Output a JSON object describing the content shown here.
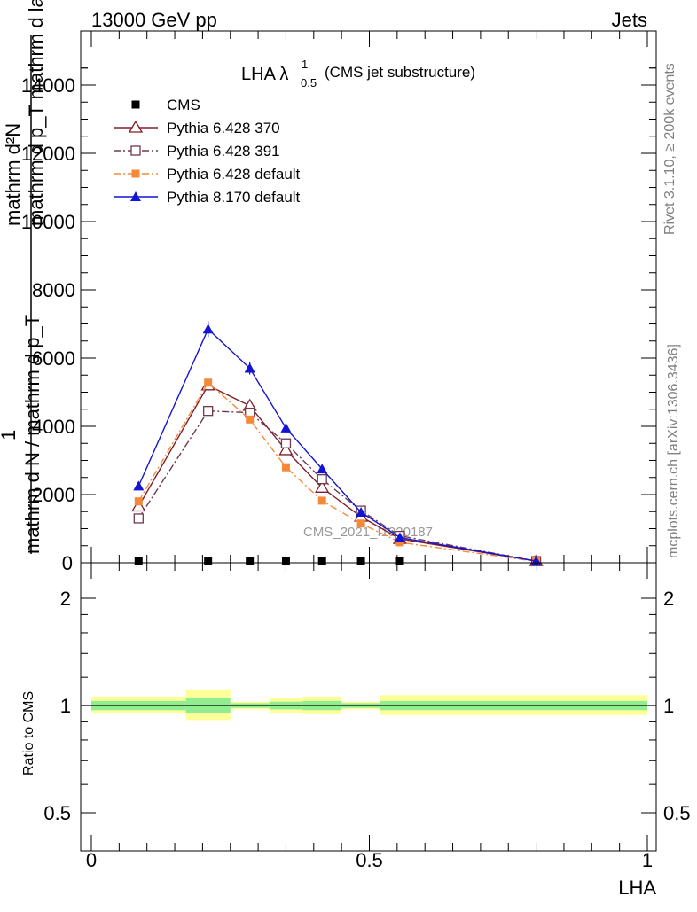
{
  "header": {
    "left": "13000 GeV pp",
    "right": "Jets"
  },
  "side_labels": {
    "rivet": "Rivet 3.1.10, ≥ 200k events",
    "mcplots": "mcplots.cern.ch [arXiv:1306.3436]"
  },
  "y_axis_label": {
    "line1": "mathrm d²N",
    "line2": "mathrm d p_T mathrm d lambda",
    "line3": "1",
    "line4": "mathrm d N / mathrm d p_T"
  },
  "ratio_ylabel": "Ratio to CMS",
  "watermark": "CMS_2021_I1920187",
  "chart_data": [
    {
      "type": "line",
      "title": "LHA λ",
      "title_sup": "1",
      "title_sub": "0.5",
      "title_suffix": "(CMS jet substructure)",
      "xlim": [
        0,
        1
      ],
      "ylim": [
        0,
        14000
      ],
      "x_ticks": [
        0,
        0.5,
        1
      ],
      "x_tick_labels": [
        "0",
        "0.5",
        "1"
      ],
      "y_ticks": [
        0,
        2000,
        4000,
        6000,
        8000,
        10000,
        12000,
        14000
      ],
      "y_tick_labels": [
        "0",
        "2000",
        "4000",
        "6000",
        "8000",
        "10000",
        "12000",
        "14000"
      ],
      "x": [
        0.085,
        0.21,
        0.285,
        0.35,
        0.415,
        0.485,
        0.555,
        0.8
      ],
      "series": [
        {
          "name": "CMS",
          "color": "#000000",
          "marker": "filled-square",
          "values": [
            10,
            10,
            10,
            10,
            10,
            10,
            10,
            10
          ]
        },
        {
          "name": "Pythia 6.428 370",
          "color": "#7f1f2a",
          "marker": "open-triangle",
          "dash": "solid",
          "values": [
            1650,
            5200,
            4600,
            3300,
            2200,
            1350,
            700,
            50
          ]
        },
        {
          "name": "Pythia 6.428 391",
          "color": "#6e3a4e",
          "marker": "open-square",
          "dash": "dashdot",
          "values": [
            1300,
            4450,
            4400,
            3500,
            2450,
            1530,
            790,
            50
          ]
        },
        {
          "name": "Pythia 6.428 default",
          "color": "#f5893a",
          "marker": "filled-square",
          "dash": "dashdot",
          "values": [
            1800,
            5280,
            4200,
            2800,
            1820,
            1150,
            600,
            40
          ]
        },
        {
          "name": "Pythia 8.170 default",
          "color": "#1414d4",
          "marker": "filled-triangle",
          "dash": "solid",
          "values": [
            2250,
            6850,
            5700,
            3950,
            2750,
            1480,
            740,
            50
          ]
        }
      ],
      "error_bars": [
        0,
        230,
        180,
        130,
        90,
        0,
        0,
        0
      ],
      "legend_position": "top-left"
    },
    {
      "type": "area",
      "xlabel": "LHA",
      "ylabel": "Ratio to CMS",
      "xlim": [
        0,
        1
      ],
      "ylim": [
        0.4,
        2.4
      ],
      "y_scale": "log",
      "y_ticks": [
        0.5,
        1,
        2
      ],
      "y_tick_labels": [
        "0.5",
        "1",
        "2"
      ],
      "x_ticks": [
        0,
        0.5,
        1
      ],
      "x_tick_labels": [
        "0",
        "0.5",
        "1"
      ],
      "bins": [
        {
          "x": [
            0,
            0.17
          ],
          "stat": [
            0.97,
            1.03
          ],
          "total": [
            0.95,
            1.06
          ]
        },
        {
          "x": [
            0.17,
            0.25
          ],
          "stat": [
            0.95,
            1.05
          ],
          "total": [
            0.91,
            1.11
          ]
        },
        {
          "x": [
            0.25,
            0.32
          ],
          "stat": [
            0.985,
            1.015
          ],
          "total": [
            0.975,
            1.025
          ]
        },
        {
          "x": [
            0.32,
            0.38
          ],
          "stat": [
            0.975,
            1.025
          ],
          "total": [
            0.955,
            1.05
          ]
        },
        {
          "x": [
            0.38,
            0.45
          ],
          "stat": [
            0.97,
            1.03
          ],
          "total": [
            0.945,
            1.06
          ]
        },
        {
          "x": [
            0.45,
            0.52
          ],
          "stat": [
            0.985,
            1.015
          ],
          "total": [
            0.975,
            1.025
          ]
        },
        {
          "x": [
            0.52,
            1.0
          ],
          "stat": [
            0.97,
            1.03
          ],
          "total": [
            0.94,
            1.07
          ]
        }
      ],
      "reference_line": 1
    }
  ]
}
